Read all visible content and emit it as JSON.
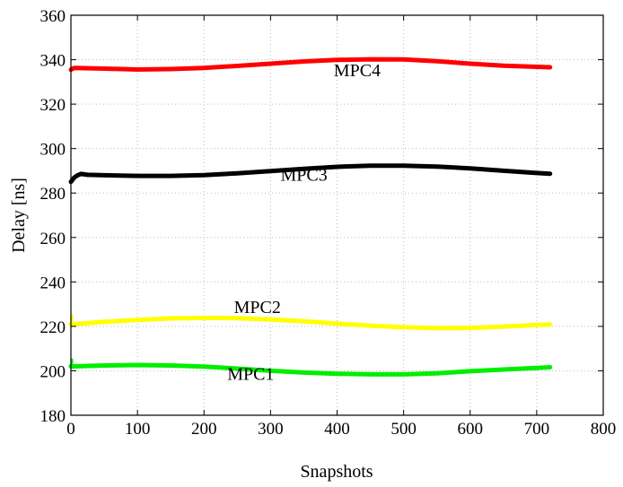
{
  "chart_data": {
    "type": "line",
    "xlabel": "Snapshots",
    "ylabel": "Delay [ns]",
    "xlim": [
      0,
      800
    ],
    "ylim": [
      180,
      360
    ],
    "xticks": [
      "0",
      "100",
      "200",
      "300",
      "400",
      "500",
      "600",
      "700",
      "800"
    ],
    "yticks": [
      "180",
      "200",
      "220",
      "240",
      "260",
      "280",
      "300",
      "320",
      "340",
      "360"
    ],
    "grid": true,
    "series": [
      {
        "name": "MPC4",
        "color": "#ff0000",
        "x": [
          0,
          5,
          50,
          100,
          150,
          200,
          250,
          300,
          350,
          400,
          450,
          500,
          550,
          600,
          650,
          700,
          720
        ],
        "y": [
          335.5,
          336.3,
          336.0,
          335.6,
          335.8,
          336.3,
          337.2,
          338.2,
          339.2,
          339.9,
          340.2,
          340.1,
          339.3,
          338.2,
          337.3,
          336.8,
          336.6
        ]
      },
      {
        "name": "MPC3",
        "color": "#000000",
        "x": [
          0,
          5,
          10,
          15,
          25,
          50,
          100,
          150,
          200,
          250,
          300,
          350,
          400,
          450,
          500,
          550,
          600,
          650,
          700,
          720
        ],
        "y": [
          285.0,
          287.0,
          288.0,
          288.6,
          288.2,
          288.0,
          287.7,
          287.7,
          288.1,
          288.9,
          289.9,
          290.9,
          291.8,
          292.3,
          292.3,
          291.9,
          291.1,
          290.0,
          289.0,
          288.7
        ]
      },
      {
        "name": "MPC2",
        "color": "#ffff00",
        "x": [
          0,
          5,
          50,
          100,
          150,
          200,
          250,
          300,
          350,
          400,
          450,
          500,
          550,
          600,
          650,
          700,
          720
        ],
        "y": [
          221.0,
          221.0,
          222.0,
          222.9,
          223.6,
          223.8,
          223.7,
          223.1,
          222.3,
          221.2,
          220.3,
          219.6,
          219.2,
          219.3,
          219.9,
          220.6,
          220.8
        ]
      },
      {
        "name": "MPC1",
        "color": "#00ee00",
        "x": [
          0,
          5,
          50,
          100,
          150,
          200,
          250,
          300,
          350,
          400,
          450,
          500,
          550,
          600,
          650,
          700,
          720
        ],
        "y": [
          202.0,
          202.0,
          202.4,
          202.6,
          202.4,
          201.9,
          201.0,
          200.0,
          199.2,
          198.7,
          198.4,
          198.4,
          198.9,
          199.8,
          200.6,
          201.3,
          201.6
        ]
      }
    ],
    "spikes": [
      {
        "series": "MPC2",
        "x": 0,
        "y_from": 221.0,
        "y_to": 225.0
      },
      {
        "series": "MPC1",
        "x": 0,
        "y_from": 202.0,
        "y_to": 205.0
      }
    ],
    "annotations": [
      {
        "text": "MPC4",
        "x": 395,
        "y": 332.5
      },
      {
        "text": "MPC3",
        "x": 315,
        "y": 285.5
      },
      {
        "text": "MPC2",
        "x": 245,
        "y": 226.0
      },
      {
        "text": "MPC1",
        "x": 235,
        "y": 196.0
      }
    ]
  }
}
